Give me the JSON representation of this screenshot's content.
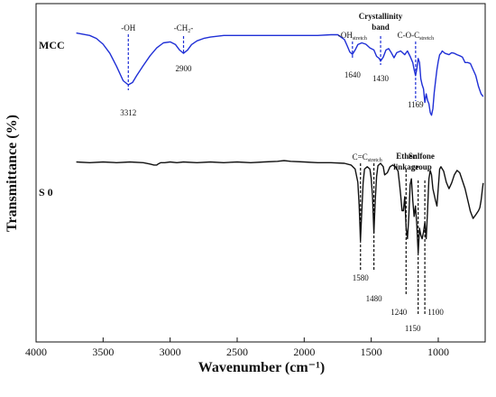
{
  "chart_data": {
    "type": "line",
    "xlabel": "Wavenumber (cm⁻¹)",
    "ylabel": "Transmittance (%)",
    "xlim": [
      4000,
      650
    ],
    "x_reversed": true,
    "ylim": [
      0,
      100
    ],
    "x_ticks": [
      "4000",
      "3500",
      "3000",
      "2500",
      "2000",
      "1500",
      "1000"
    ],
    "x_tick_values": [
      4000,
      3500,
      3000,
      2500,
      2000,
      1500,
      1000
    ],
    "grid": false,
    "series": [
      {
        "name": "MCC",
        "color": "#1f2fd6",
        "x": [
          3700,
          3600,
          3550,
          3500,
          3450,
          3400,
          3350,
          3312,
          3280,
          3250,
          3200,
          3150,
          3100,
          3050,
          3000,
          2960,
          2930,
          2900,
          2870,
          2840,
          2800,
          2750,
          2700,
          2600,
          2500,
          2400,
          2300,
          2200,
          2100,
          2000,
          1900,
          1800,
          1750,
          1700,
          1680,
          1660,
          1640,
          1620,
          1600,
          1570,
          1540,
          1510,
          1480,
          1460,
          1440,
          1430,
          1410,
          1390,
          1370,
          1350,
          1330,
          1310,
          1280,
          1250,
          1230,
          1210,
          1190,
          1180,
          1169,
          1160,
          1150,
          1140,
          1130,
          1120,
          1110,
          1100,
          1090,
          1080,
          1070,
          1060,
          1050,
          1040,
          1030,
          1020,
          1010,
          1000,
          990,
          980,
          970,
          950,
          920,
          900,
          880,
          860,
          840,
          820,
          800,
          780,
          760,
          740,
          720,
          700,
          680,
          665
        ],
        "y": [
          91.3,
          90.6,
          89.7,
          88.0,
          85.3,
          81.5,
          77.2,
          76.0,
          76.7,
          78.7,
          81.7,
          84.6,
          86.9,
          88.4,
          88.7,
          87.9,
          86.3,
          85.3,
          86.3,
          87.9,
          89.0,
          89.7,
          90.1,
          90.6,
          90.6,
          90.6,
          90.6,
          90.6,
          90.6,
          90.6,
          90.6,
          90.8,
          90.8,
          89.4,
          87.6,
          85.7,
          85.0,
          86.3,
          87.9,
          88.4,
          88.0,
          86.9,
          86.3,
          84.4,
          83.8,
          83.0,
          84.2,
          86.3,
          86.7,
          85.5,
          84.0,
          85.5,
          86.0,
          84.9,
          86.0,
          84.4,
          82.6,
          80.5,
          78.7,
          80.8,
          83.8,
          82.6,
          77.8,
          76.0,
          74.8,
          70.8,
          73.3,
          71.4,
          70.4,
          67.8,
          67.0,
          68.9,
          73.7,
          77.2,
          80.5,
          83.0,
          84.9,
          85.3,
          86.0,
          85.3,
          84.9,
          85.5,
          85.3,
          84.9,
          84.6,
          84.2,
          82.6,
          82.6,
          82.3,
          80.5,
          78.7,
          75.5,
          73.3,
          72.5
        ]
      },
      {
        "name": "S 0",
        "color": "#111111",
        "x": [
          3700,
          3600,
          3500,
          3400,
          3300,
          3200,
          3150,
          3120,
          3100,
          3090,
          3070,
          3040,
          3000,
          2950,
          2900,
          2800,
          2700,
          2600,
          2500,
          2400,
          2300,
          2200,
          2150,
          2100,
          2000,
          1900,
          1800,
          1700,
          1650,
          1620,
          1600,
          1590,
          1580,
          1570,
          1560,
          1550,
          1530,
          1510,
          1500,
          1490,
          1480,
          1470,
          1460,
          1450,
          1430,
          1410,
          1400,
          1380,
          1360,
          1340,
          1320,
          1300,
          1290,
          1280,
          1270,
          1260,
          1250,
          1240,
          1230,
          1220,
          1210,
          1200,
          1190,
          1180,
          1170,
          1160,
          1150,
          1140,
          1130,
          1120,
          1110,
          1100,
          1090,
          1080,
          1070,
          1060,
          1050,
          1040,
          1020,
          1010,
          1000,
          990,
          980,
          960,
          940,
          920,
          900,
          880,
          860,
          840,
          830,
          820,
          800,
          780,
          760,
          740,
          720,
          700,
          690,
          680,
          670,
          665
        ],
        "y": [
          53.2,
          53.0,
          53.2,
          53.0,
          53.2,
          53.0,
          52.6,
          52.3,
          52.3,
          52.6,
          53.0,
          53.0,
          53.2,
          53.0,
          53.2,
          53.0,
          53.2,
          53.0,
          53.2,
          53.0,
          53.2,
          53.4,
          53.6,
          53.4,
          53.2,
          53.0,
          53.0,
          52.8,
          52.3,
          51.1,
          47.2,
          40.2,
          30.0,
          38.8,
          47.2,
          51.1,
          51.8,
          51.1,
          48.4,
          42.9,
          32.3,
          41.9,
          48.9,
          52.1,
          52.8,
          51.8,
          49.4,
          50.0,
          51.8,
          52.3,
          51.8,
          50.5,
          47.0,
          43.4,
          38.8,
          38.8,
          42.9,
          33.9,
          30.5,
          36.9,
          46.5,
          48.2,
          41.9,
          37.1,
          40.2,
          34.6,
          26.3,
          33.6,
          31.6,
          30.5,
          32.5,
          35.3,
          30.5,
          38.8,
          48.2,
          50.7,
          49.4,
          45.3,
          41.7,
          40.2,
          45.6,
          51.1,
          51.8,
          50.5,
          47.2,
          45.3,
          47.0,
          49.4,
          50.7,
          50.0,
          48.9,
          47.7,
          45.3,
          41.9,
          38.6,
          36.5,
          37.6,
          38.8,
          39.7,
          41.9,
          45.3,
          47.0
        ]
      }
    ],
    "annotations": [
      {
        "series": "MCC",
        "text": "-OH",
        "x": 3312
      },
      {
        "series": "MCC",
        "text": "3312",
        "x": 3312
      },
      {
        "series": "MCC",
        "text": "-CH",
        "sub": "2",
        "suffix": "-",
        "x": 2900
      },
      {
        "series": "MCC",
        "text": "2900",
        "x": 2900
      },
      {
        "series": "MCC",
        "text": "-OH",
        "sub": "stretch",
        "x": 1640
      },
      {
        "series": "MCC",
        "text": "1640",
        "x": 1640
      },
      {
        "series": "MCC",
        "text": "Crystallinity",
        "x": 1430
      },
      {
        "series": "MCC",
        "text": "band",
        "x": 1430
      },
      {
        "series": "MCC",
        "text": "1430",
        "x": 1430
      },
      {
        "series": "MCC",
        "text": "C-O-C",
        "sub": "stretch",
        "x": 1169
      },
      {
        "series": "MCC",
        "text": "1169",
        "x": 1169
      },
      {
        "series": "S 0",
        "text": "C=C",
        "sub": "stretch",
        "x": 1530
      },
      {
        "series": "S 0",
        "text": "1580",
        "x": 1580
      },
      {
        "series": "S 0",
        "text": "1480",
        "x": 1480
      },
      {
        "series": "S 0",
        "text": "Ether",
        "x": 1240
      },
      {
        "series": "S 0",
        "text": "linkage",
        "x": 1240
      },
      {
        "series": "S 0",
        "text": "1240",
        "x": 1240
      },
      {
        "series": "S 0",
        "text": "Sulfone",
        "x": 1125
      },
      {
        "series": "S 0",
        "text": "group",
        "x": 1125
      },
      {
        "series": "S 0",
        "text": "1150",
        "x": 1150
      },
      {
        "series": "S 0",
        "text": "1100",
        "x": 1100
      }
    ]
  }
}
